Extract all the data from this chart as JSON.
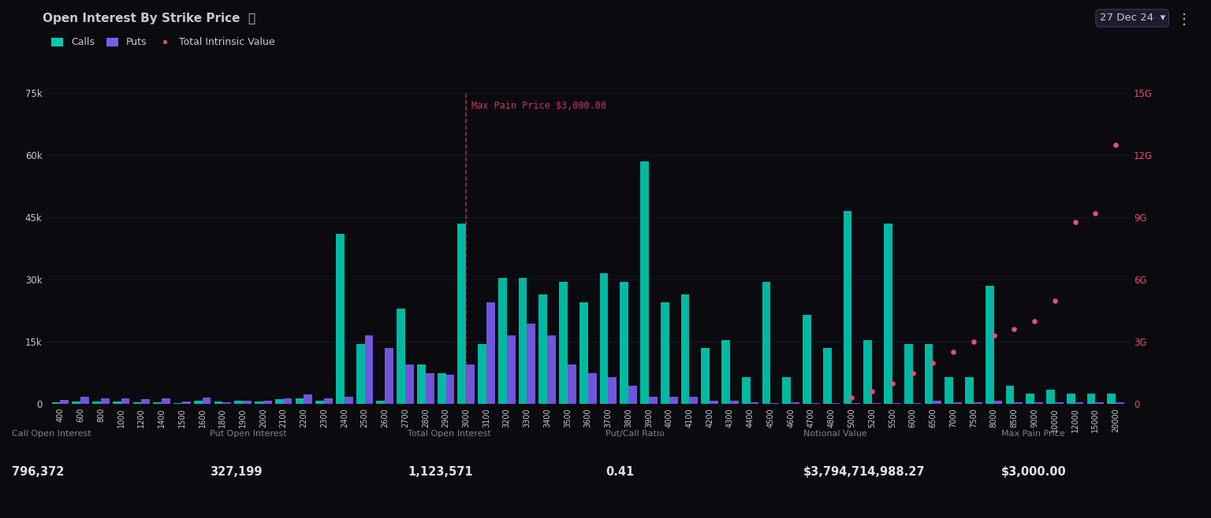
{
  "title": "Open Interest By Strike Price",
  "info_symbol": "ⓘ",
  "date_label": "27 Dec 24",
  "background_color": "#0a0a0f",
  "plot_bg_color": "#0a0a0f",
  "calls_color": "#00c9b1",
  "puts_color": "#7b5cf0",
  "tiv_color": "#e0507a",
  "grid_color": "#1a1a2a",
  "text_color": "#c8c8d0",
  "axis_color": "#2a2a3a",
  "max_pain_price": 3000,
  "max_pain_color": "#cc3366",
  "strikes": [
    400,
    600,
    800,
    1000,
    1200,
    1400,
    1500,
    1600,
    1800,
    1900,
    2000,
    2100,
    2200,
    2300,
    2400,
    2500,
    2600,
    2700,
    2800,
    2900,
    3000,
    3100,
    3200,
    3300,
    3400,
    3500,
    3600,
    3700,
    3800,
    3900,
    4000,
    4100,
    4200,
    4300,
    4400,
    4500,
    4600,
    4700,
    4800,
    5000,
    5200,
    5500,
    6000,
    6500,
    7000,
    7500,
    8000,
    8500,
    9000,
    10000,
    12000,
    15000,
    20000
  ],
  "calls": [
    400,
    700,
    600,
    600,
    400,
    500,
    200,
    900,
    600,
    900,
    700,
    1100,
    1300,
    800,
    41000,
    14500,
    900,
    23000,
    9500,
    7500,
    43500,
    14500,
    30500,
    30500,
    26500,
    29500,
    24500,
    31500,
    29500,
    58500,
    24500,
    26500,
    13500,
    15500,
    6500,
    29500,
    6500,
    21500,
    13500,
    46500,
    15500,
    43500,
    14500,
    14500,
    6500,
    6500,
    28500,
    4500,
    2500,
    3500,
    2500,
    2500,
    2500
  ],
  "puts": [
    1000,
    1800,
    1300,
    1300,
    1100,
    1300,
    600,
    1600,
    400,
    900,
    900,
    1400,
    2300,
    1300,
    1800,
    16500,
    13500,
    9500,
    7500,
    7000,
    9500,
    24500,
    16500,
    19500,
    16500,
    9500,
    7500,
    6500,
    4500,
    1800,
    1800,
    1800,
    900,
    900,
    400,
    200,
    400,
    200,
    200,
    150,
    150,
    150,
    200,
    900,
    400,
    400,
    900,
    400,
    400,
    400,
    400,
    400,
    400
  ],
  "tiv_x": [
    39,
    40,
    41,
    42,
    43,
    44,
    45,
    46,
    47,
    48,
    49,
    50,
    51,
    52
  ],
  "tiv_v": [
    300000000.0,
    600000000.0,
    1000000000.0,
    1500000000.0,
    2000000000.0,
    2500000000.0,
    3000000000.0,
    3300000000.0,
    3600000000.0,
    4000000000.0,
    5000000000.0,
    8800000000.0,
    9200000000.0,
    12500000000.0
  ],
  "ylim_left": [
    0,
    75000
  ],
  "ylim_right": [
    0,
    15000000000
  ],
  "yticks_left": [
    0,
    15000,
    30000,
    45000,
    60000,
    75000
  ],
  "yticks_right": [
    0,
    3000000000,
    6000000000,
    9000000000,
    12000000000,
    15000000000
  ],
  "stats": {
    "call_oi": "796,372",
    "put_oi": "327,199",
    "total_oi": "1,123,571",
    "put_call_ratio": "0.41",
    "notional_value": "$3,794,714,988.27",
    "max_pain_price": "$3,000.00"
  },
  "stat_colors": [
    "#00c9b1",
    "#7b5cf0",
    "#3a3a5a",
    "#3a3a5a",
    "#3a3a5a",
    "#cc3366"
  ]
}
